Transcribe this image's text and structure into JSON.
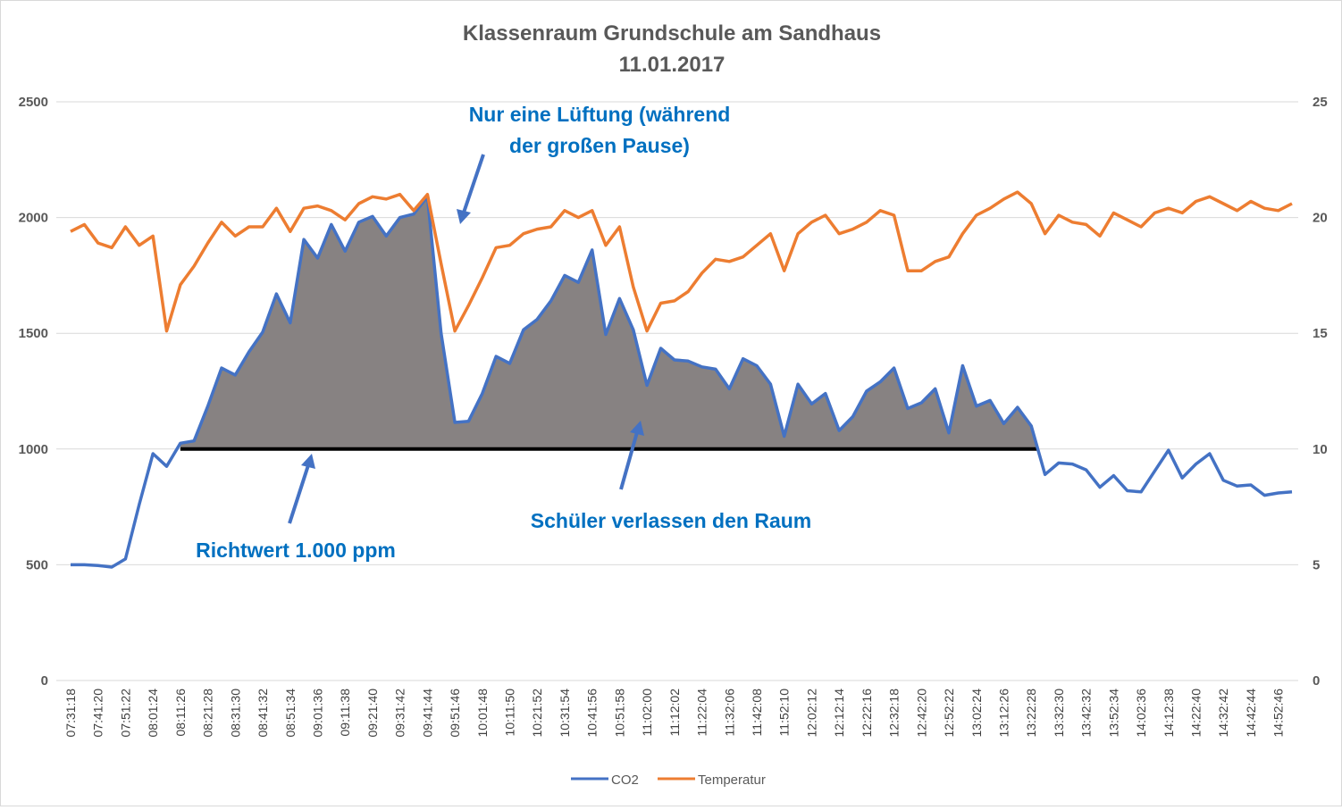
{
  "chart_data": {
    "type": "line",
    "title": "Klassenraum Grundschule am Sandhaus",
    "subtitle": "11.01.2017",
    "xlabel": "",
    "ylabel": "",
    "y_left": {
      "range": [
        0,
        2500
      ],
      "ticks": [
        "0",
        "500",
        "1000",
        "1500",
        "2000",
        "2500"
      ]
    },
    "y_right": {
      "range": [
        0,
        25
      ],
      "ticks": [
        "0",
        "5",
        "10",
        "15",
        "20",
        "25"
      ]
    },
    "grid": true,
    "legend_position": "bottom",
    "x_tick_labels": [
      "07:31:18",
      "07:41:20",
      "07:51:22",
      "08:01:24",
      "08:11:26",
      "08:21:28",
      "08:31:30",
      "08:41:32",
      "08:51:34",
      "09:01:36",
      "09:11:38",
      "09:21:40",
      "09:31:42",
      "09:41:44",
      "09:51:46",
      "10:01:48",
      "10:11:50",
      "10:21:52",
      "10:31:54",
      "10:41:56",
      "10:51:58",
      "11:02:00",
      "11:12:02",
      "11:22:04",
      "11:32:06",
      "11:42:08",
      "11:52:10",
      "12:02:12",
      "12:12:14",
      "12:22:16",
      "12:32:18",
      "12:42:20",
      "12:52:22",
      "13:02:24",
      "13:12:26",
      "13:22:28",
      "13:32:30",
      "13:42:32",
      "13:52:34",
      "14:02:36",
      "14:12:38",
      "14:22:40",
      "14:32:42",
      "14:42:44",
      "14:52:46"
    ],
    "series": [
      {
        "name": "CO2",
        "axis": "left",
        "color": "#4472c4",
        "values": [
          500,
          500,
          497,
          490,
          525,
          760,
          980,
          925,
          1025,
          1035,
          1185,
          1350,
          1320,
          1420,
          1505,
          1670,
          1545,
          1905,
          1825,
          1970,
          1855,
          1980,
          2005,
          1920,
          2000,
          2015,
          2090,
          1500,
          1115,
          1120,
          1240,
          1400,
          1370,
          1515,
          1560,
          1640,
          1750,
          1720,
          1860,
          1495,
          1650,
          1515,
          1275,
          1435,
          1385,
          1380,
          1355,
          1345,
          1260,
          1390,
          1360,
          1280,
          1055,
          1280,
          1195,
          1240,
          1080,
          1140,
          1250,
          1290,
          1350,
          1175,
          1200,
          1260,
          1070,
          1360,
          1185,
          1210,
          1110,
          1180,
          1100,
          890,
          940,
          935,
          910,
          835,
          885,
          820,
          815,
          905,
          995,
          875,
          935,
          980,
          865,
          840,
          845,
          800,
          810,
          815
        ]
      },
      {
        "name": "Temperatur",
        "axis": "right",
        "color": "#ed7d31",
        "values": [
          19.4,
          19.7,
          18.9,
          18.7,
          19.6,
          18.8,
          19.2,
          15.1,
          17.1,
          17.9,
          18.9,
          19.8,
          19.2,
          19.6,
          19.6,
          20.4,
          19.4,
          20.4,
          20.5,
          20.3,
          19.9,
          20.6,
          20.9,
          20.8,
          21.0,
          20.3,
          21.0,
          18.0,
          15.1,
          16.2,
          17.4,
          18.7,
          18.8,
          19.3,
          19.5,
          19.6,
          20.3,
          20.0,
          20.3,
          18.8,
          19.6,
          17.0,
          15.1,
          16.3,
          16.4,
          16.8,
          17.6,
          18.2,
          18.1,
          18.3,
          18.8,
          19.3,
          17.7,
          19.3,
          19.8,
          20.1,
          19.3,
          19.5,
          19.8,
          20.3,
          20.1,
          17.7,
          17.7,
          18.1,
          18.3,
          19.3,
          20.1,
          20.4,
          20.8,
          21.1,
          20.6,
          19.3,
          20.1,
          19.8,
          19.7,
          19.2,
          20.2,
          19.9,
          19.6,
          20.2,
          20.4,
          20.2,
          20.7,
          20.9,
          20.6,
          20.3,
          20.7,
          20.4,
          20.3,
          20.6
        ]
      }
    ],
    "threshold": {
      "value": 1000,
      "from_index": 8,
      "to_index": 70,
      "area_color": "#878282",
      "line_color": "#000000"
    },
    "annotations": [
      {
        "lines": [
          "Nur eine Lüftung (während",
          "der großen Pause)"
        ]
      },
      {
        "lines": [
          "Richtwert 1.000 ppm"
        ]
      },
      {
        "lines": [
          "Schüler verlassen den Raum"
        ]
      }
    ]
  }
}
